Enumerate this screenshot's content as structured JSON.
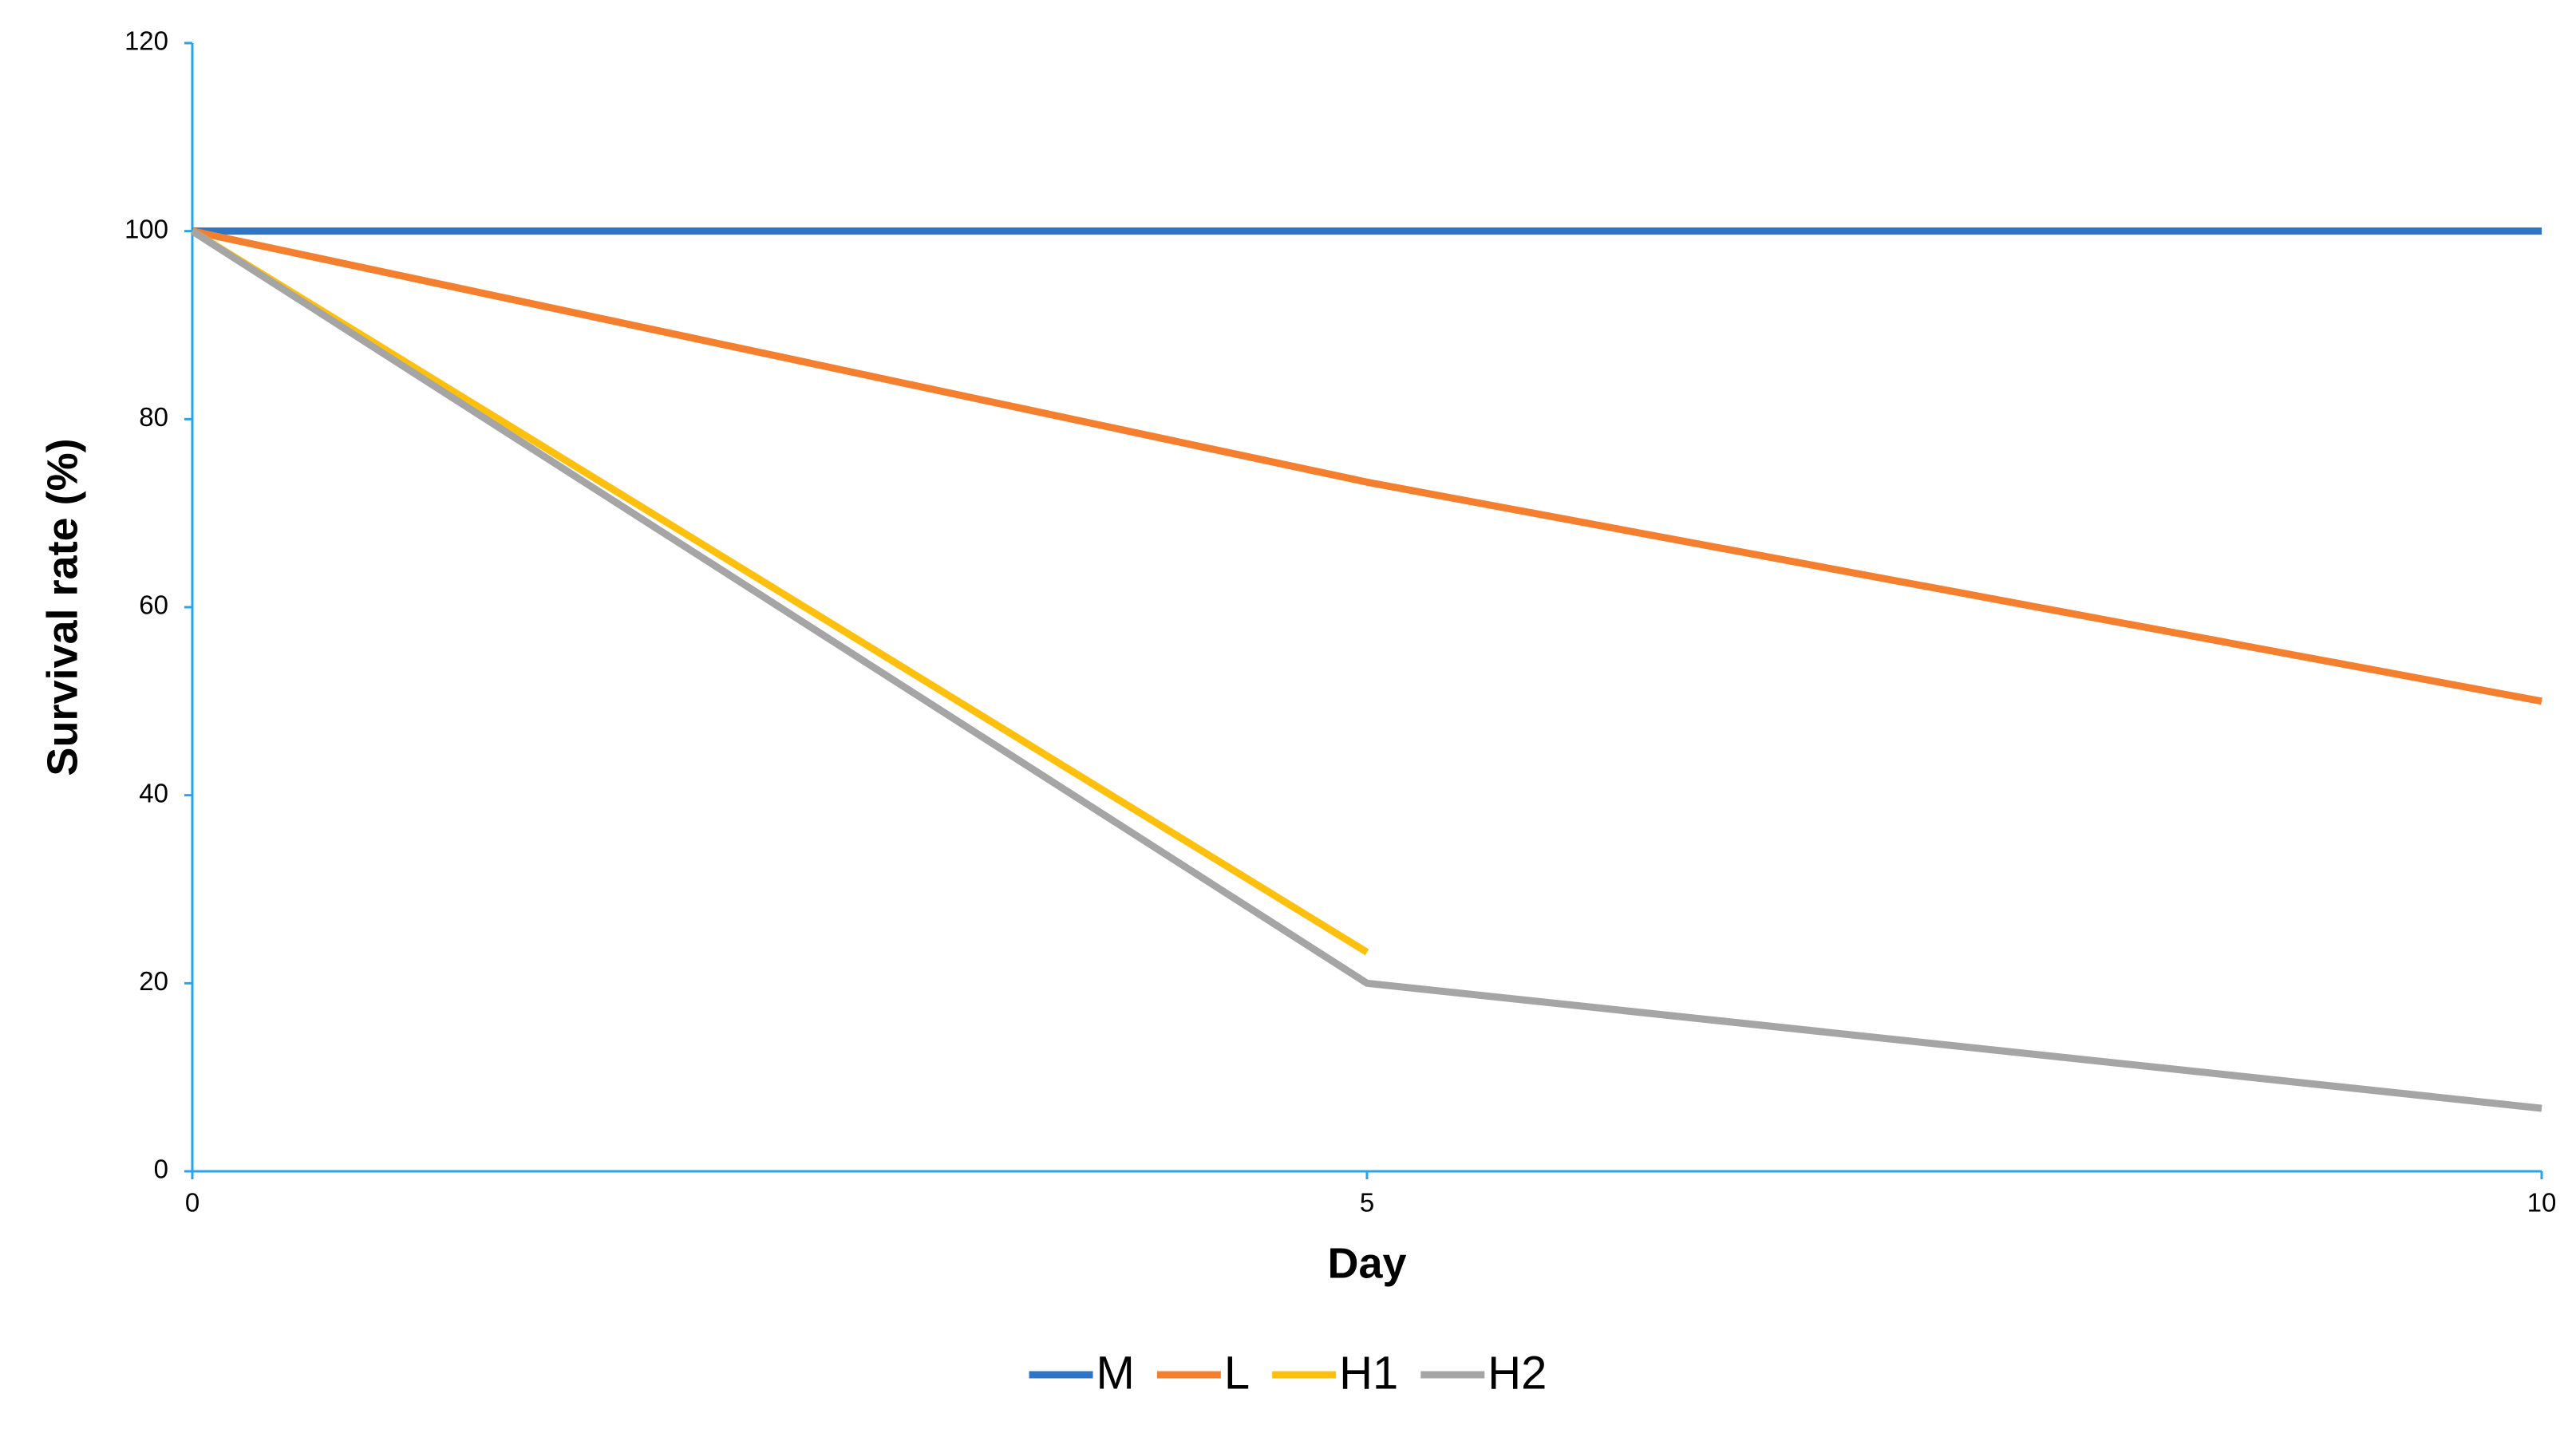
{
  "chart_data": {
    "type": "line",
    "x_label": "Day",
    "y_label": "Survival rate (%)",
    "x": [
      0,
      5,
      10
    ],
    "series": [
      {
        "name": "M",
        "color": "#2e75c6",
        "values": [
          100,
          100,
          100
        ]
      },
      {
        "name": "L",
        "color": "#f4802f",
        "values": [
          100,
          73.3,
          50
        ]
      },
      {
        "name": "H1",
        "color": "#fec00f",
        "values": [
          100,
          23.3,
          null
        ]
      },
      {
        "name": "H2",
        "color": "#a5a5a5",
        "values": [
          100,
          20,
          6.7
        ]
      }
    ],
    "xlim": [
      0,
      10
    ],
    "xticks": [
      0,
      5,
      10
    ],
    "ylim": [
      0,
      120
    ],
    "yticks": [
      0,
      20,
      40,
      60,
      80,
      100,
      120
    ],
    "grid": false,
    "legend": "bottom",
    "axis_color": "#2ba3e8"
  }
}
